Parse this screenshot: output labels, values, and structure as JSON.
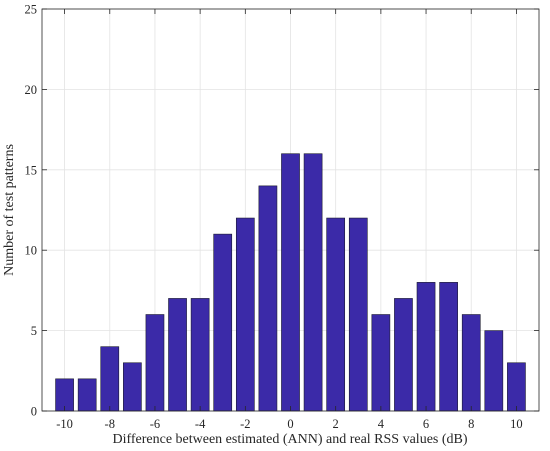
{
  "chart_data": {
    "type": "bar",
    "title": "",
    "xlabel": "Difference between estimated (ANN) and real RSS values (dB)",
    "ylabel": "Number of test patterns",
    "x": [
      -10,
      -9,
      -8,
      -7,
      -6,
      -5,
      -4,
      -3,
      -2,
      -1,
      0,
      1,
      2,
      3,
      4,
      5,
      6,
      7,
      8,
      9,
      10
    ],
    "values": [
      2,
      2,
      4,
      3,
      6,
      7,
      7,
      11,
      12,
      14,
      16,
      16,
      12,
      12,
      6,
      7,
      8,
      8,
      6,
      5,
      3
    ],
    "xlim": [
      -11,
      11
    ],
    "ylim": [
      0,
      25
    ],
    "xticks": [
      -10,
      -8,
      -6,
      -4,
      -2,
      0,
      2,
      4,
      6,
      8,
      10
    ],
    "yticks": [
      0,
      5,
      10,
      15,
      20,
      25
    ],
    "grid": true,
    "bar_color": "#3B2AA8",
    "bar_edge_color": "#1a1a2e"
  }
}
